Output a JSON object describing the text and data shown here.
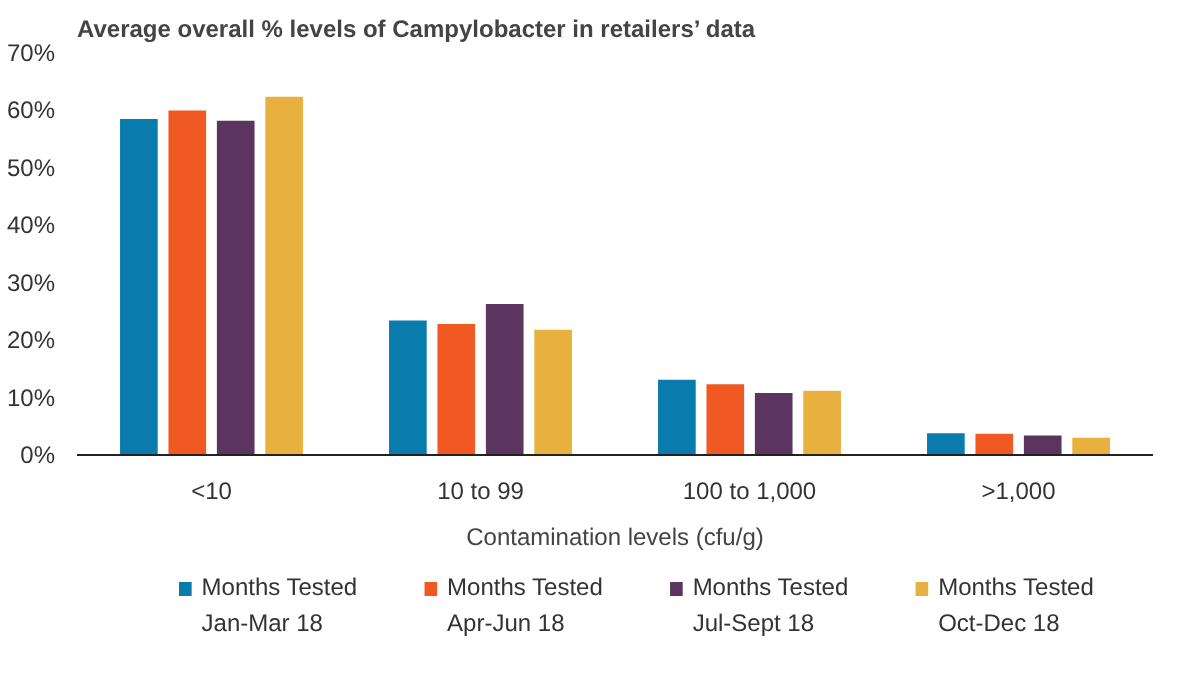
{
  "chart_data": {
    "type": "bar",
    "title": "Average overall % levels of Campylobacter in retailers’ data",
    "xlabel": "Contamination levels (cfu/g)",
    "categories": [
      "<10",
      "10 to 99",
      "100 to 1,000",
      ">1,000"
    ],
    "series": [
      {
        "name": "Months Tested\nJan-Mar 18",
        "color": "#0a7bad",
        "values": [
          58.5,
          23.4,
          13.1,
          3.8
        ]
      },
      {
        "name": "Months Tested\nApr-Jun 18",
        "color": "#f05a22",
        "values": [
          60.0,
          22.8,
          12.3,
          3.7
        ]
      },
      {
        "name": "Months Tested\nJul-Sept 18",
        "color": "#5b3560",
        "values": [
          58.2,
          26.3,
          10.8,
          3.4
        ]
      },
      {
        "name": "Months Tested\nOct-Dec 18",
        "color": "#e8b03e",
        "values": [
          62.4,
          21.8,
          11.2,
          3.0
        ]
      }
    ],
    "ylim": [
      0,
      70
    ],
    "yticks": [
      {
        "value": 0,
        "label": "0%"
      },
      {
        "value": 10,
        "label": "10%"
      },
      {
        "value": 20,
        "label": "20%"
      },
      {
        "value": 30,
        "label": "30%"
      },
      {
        "value": 40,
        "label": "40%"
      },
      {
        "value": 50,
        "label": "50%"
      },
      {
        "value": 60,
        "label": "60%"
      },
      {
        "value": 70,
        "label": "70%"
      }
    ],
    "grid": false,
    "legend": "bottom"
  }
}
